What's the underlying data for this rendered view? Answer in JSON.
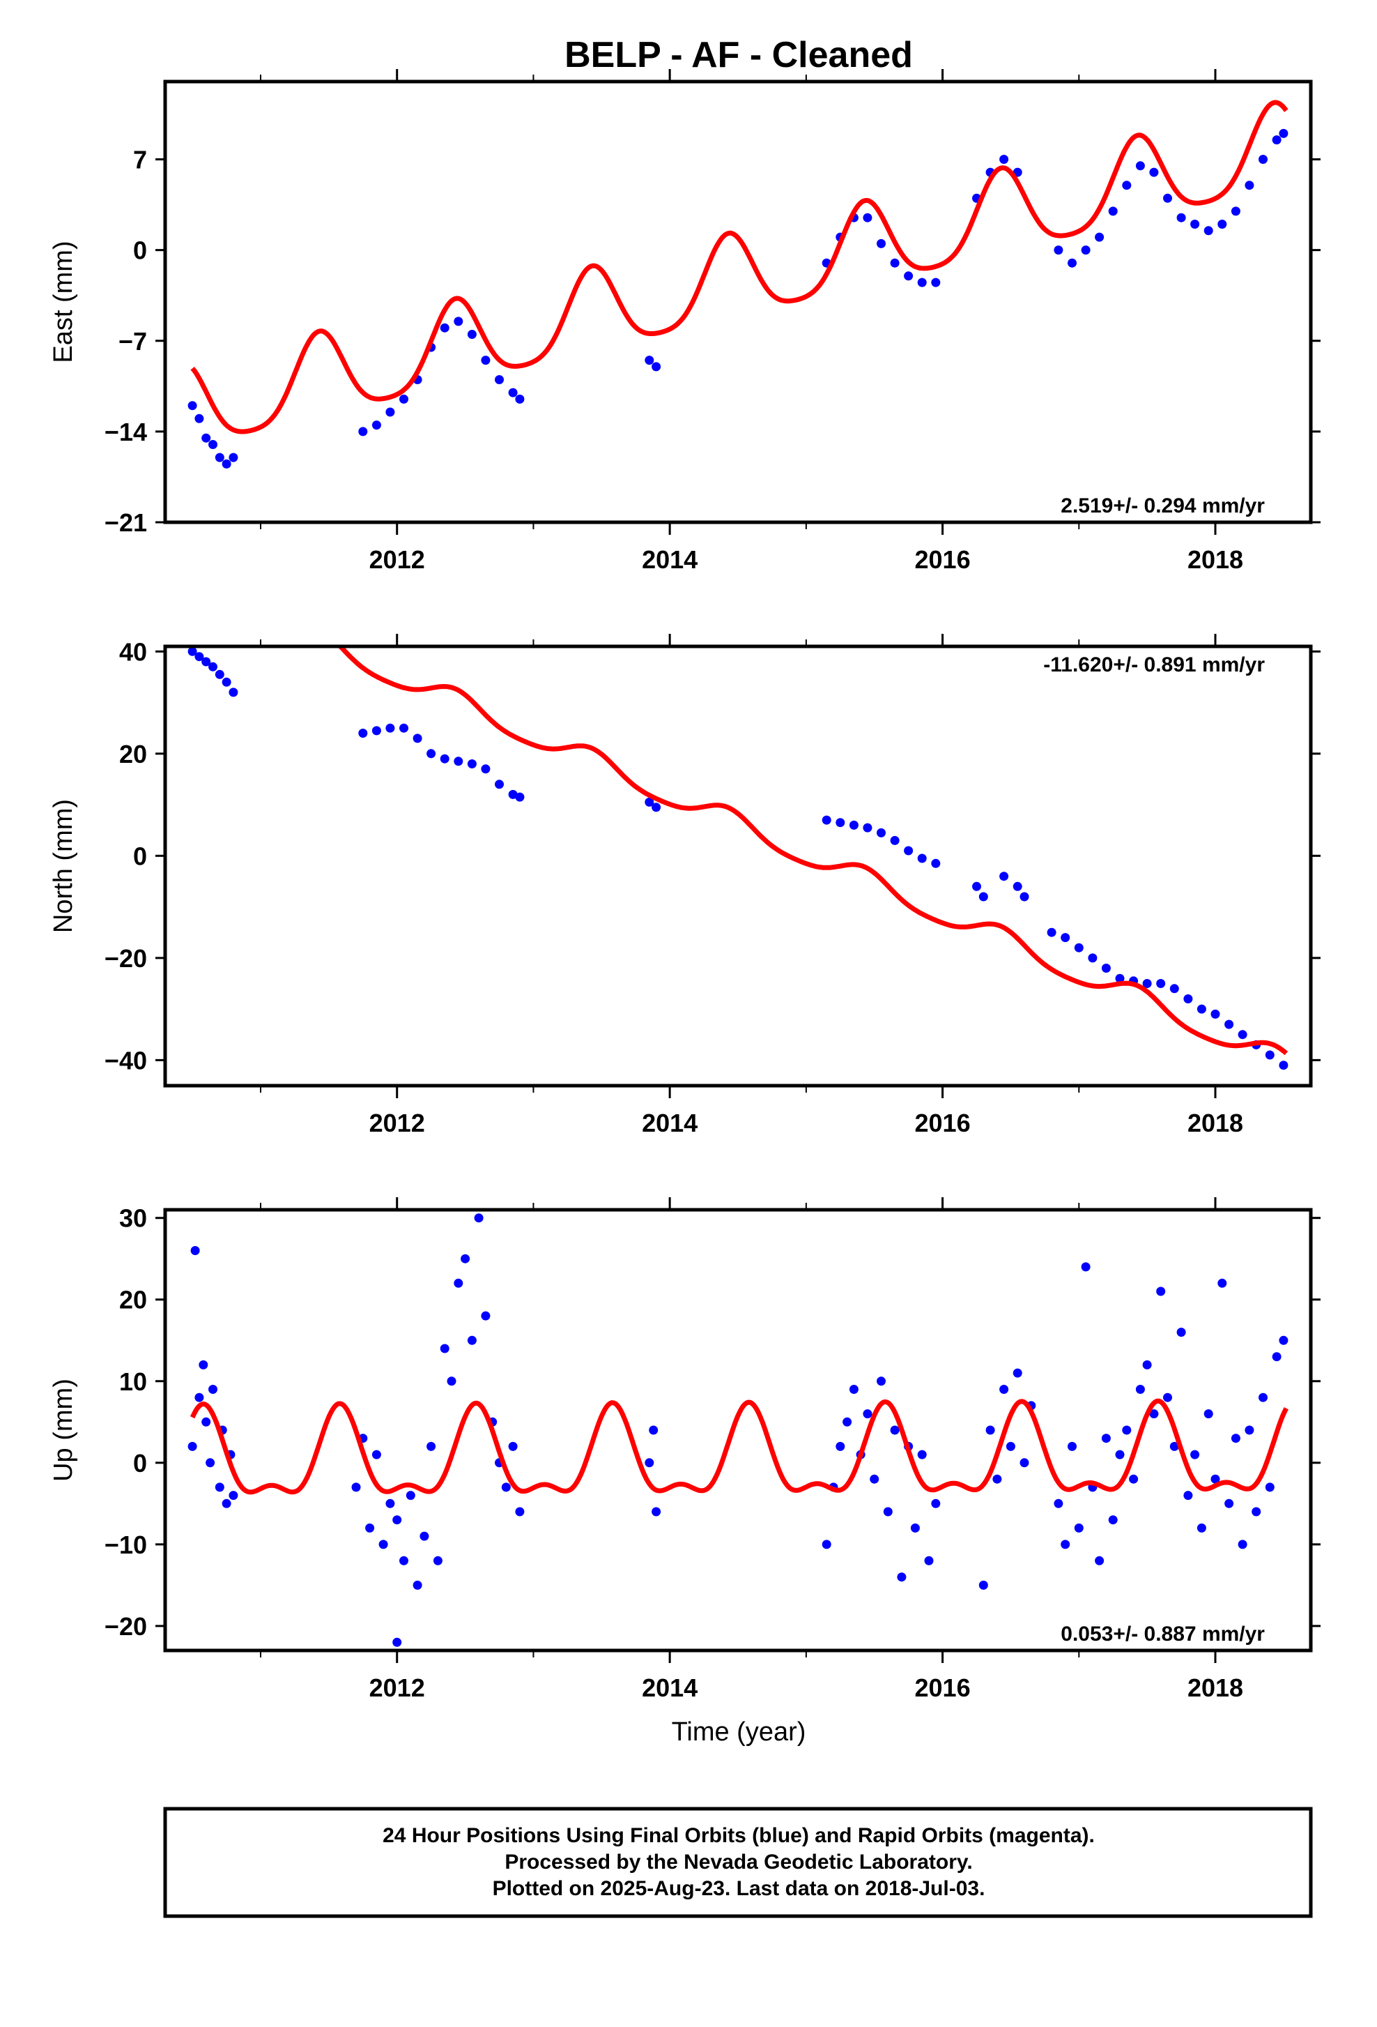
{
  "title": "BELP  - AF - Cleaned",
  "colors": {
    "data": "#0000ff",
    "model": "#ff0000",
    "frame": "#000000"
  },
  "xlabel": "Time (year)",
  "caption": [
    "24 Hour Positions Using Final Orbits (blue) and Rapid Orbits (magenta).",
    "Processed by the Nevada Geodetic Laboratory.",
    "Plotted on 2025-Aug-23. Last data on 2018-Jul-03."
  ],
  "chart_data": [
    {
      "type": "scatter",
      "id": "east",
      "ylabel": "East (mm)",
      "rate_label": "2.519+/- 0.294 mm/yr",
      "xlim": [
        2010.3,
        2018.7
      ],
      "ylim": [
        -21,
        13
      ],
      "yticks": [
        -21,
        -14,
        -7,
        0,
        7
      ],
      "xticks": [
        2012,
        2014,
        2016,
        2018
      ],
      "minor_xticks": [
        2011,
        2013,
        2015,
        2017
      ],
      "series": [
        {
          "x": [
            2010.5,
            2010.55,
            2010.6,
            2010.65,
            2010.7,
            2010.75,
            2010.8,
            2011.75,
            2011.85,
            2011.95,
            2012.05,
            2012.15,
            2012.25,
            2012.35,
            2012.45,
            2012.55,
            2012.65,
            2012.75,
            2012.85,
            2012.9,
            2013.85,
            2013.9,
            2015.15,
            2015.25,
            2015.35,
            2015.45,
            2015.55,
            2015.65,
            2015.75,
            2015.85,
            2015.95,
            2016.25,
            2016.35,
            2016.45,
            2016.55,
            2016.85,
            2016.95,
            2017.05,
            2017.15,
            2017.25,
            2017.35,
            2017.45,
            2017.55,
            2017.65,
            2017.75,
            2017.85,
            2017.95,
            2018.05,
            2018.15,
            2018.25,
            2018.35,
            2018.45,
            2018.5
          ],
          "y": [
            -12,
            -13,
            -14.5,
            -15,
            -16,
            -16.5,
            -16,
            -14,
            -13.5,
            -12.5,
            -11.5,
            -10,
            -7.5,
            -6,
            -5.5,
            -6.5,
            -8.5,
            -10,
            -11,
            -11.5,
            -8.5,
            -9,
            -1,
            1,
            2.5,
            2.5,
            0.5,
            -1,
            -2,
            -2.5,
            -2.5,
            4,
            6,
            7,
            6,
            0,
            -1,
            0,
            1,
            3,
            5,
            6.5,
            6,
            4,
            2.5,
            2,
            1.5,
            2,
            3,
            5,
            7,
            8.5,
            9
          ]
        }
      ],
      "model": {
        "ref_year": 2010.5,
        "offset": -12.4,
        "rate": 2.519,
        "annual_amp": 3.2,
        "annual_phase": 2011.43,
        "semi_amp": 0.6,
        "semi_phase": 2011.43
      }
    },
    {
      "type": "scatter",
      "id": "north",
      "ylabel": "North (mm)",
      "rate_label": "-11.620+/- 0.891 mm/yr",
      "xlim": [
        2010.3,
        2018.7
      ],
      "ylim": [
        -45,
        41
      ],
      "yticks": [
        -40,
        -20,
        0,
        20,
        40
      ],
      "xticks": [
        2012,
        2014,
        2016,
        2018
      ],
      "minor_xticks": [
        2011,
        2013,
        2015,
        2017
      ],
      "series": [
        {
          "x": [
            2010.5,
            2010.55,
            2010.6,
            2010.65,
            2010.7,
            2010.75,
            2010.8,
            2011.75,
            2011.85,
            2011.95,
            2012.05,
            2012.15,
            2012.25,
            2012.35,
            2012.45,
            2012.55,
            2012.65,
            2012.75,
            2012.85,
            2012.9,
            2013.85,
            2013.9,
            2015.15,
            2015.25,
            2015.35,
            2015.45,
            2015.55,
            2015.65,
            2015.75,
            2015.85,
            2015.95,
            2016.25,
            2016.3,
            2016.45,
            2016.55,
            2016.6,
            2016.8,
            2016.9,
            2017.0,
            2017.1,
            2017.2,
            2017.3,
            2017.4,
            2017.5,
            2017.6,
            2017.7,
            2017.8,
            2017.9,
            2018.0,
            2018.1,
            2018.2,
            2018.3,
            2018.4,
            2018.5
          ],
          "y": [
            40,
            39,
            38,
            37,
            35.5,
            34,
            32,
            24,
            24.5,
            25,
            25,
            23,
            20,
            19,
            18.5,
            18,
            17,
            14,
            12,
            11.5,
            10.5,
            9.5,
            7,
            6.5,
            6,
            5.5,
            4.5,
            3,
            1,
            -0.5,
            -1.5,
            -6,
            -8,
            -4,
            -6,
            -8,
            -15,
            -16,
            -18,
            -20,
            -22,
            -24,
            -24.5,
            -25,
            -25,
            -26,
            -28,
            -30,
            -31,
            -33,
            -35,
            -37,
            -39,
            -41
          ]
        }
      ],
      "model": {
        "ref_year": 2010.5,
        "offset": 52.5,
        "rate": -11.62,
        "annual_amp": 2.2,
        "annual_phase": 2011.43,
        "semi_amp": 0.4,
        "semi_phase": 2011.43
      }
    },
    {
      "type": "scatter",
      "id": "up",
      "ylabel": "Up (mm)",
      "rate_label": "0.053+/- 0.887 mm/yr",
      "xlim": [
        2010.3,
        2018.7
      ],
      "ylim": [
        -23,
        31
      ],
      "yticks": [
        -20,
        -10,
        0,
        10,
        20,
        30
      ],
      "xticks": [
        2012,
        2014,
        2016,
        2018
      ],
      "minor_xticks": [
        2011,
        2013,
        2015,
        2017
      ],
      "series": [
        {
          "x": [
            2010.5,
            2010.52,
            2010.55,
            2010.58,
            2010.6,
            2010.63,
            2010.65,
            2010.7,
            2010.72,
            2010.75,
            2010.78,
            2010.8,
            2011.7,
            2011.75,
            2011.8,
            2011.85,
            2011.9,
            2011.95,
            2012.0,
            2012.0,
            2012.05,
            2012.1,
            2012.15,
            2012.2,
            2012.25,
            2012.3,
            2012.35,
            2012.4,
            2012.45,
            2012.5,
            2012.55,
            2012.6,
            2012.65,
            2012.7,
            2012.75,
            2012.8,
            2012.85,
            2012.9,
            2013.85,
            2013.9,
            2013.88,
            2015.15,
            2015.2,
            2015.25,
            2015.3,
            2015.35,
            2015.4,
            2015.45,
            2015.5,
            2015.55,
            2015.6,
            2015.65,
            2015.7,
            2015.75,
            2015.8,
            2015.85,
            2015.9,
            2015.95,
            2016.3,
            2016.35,
            2016.4,
            2016.45,
            2016.5,
            2016.55,
            2016.6,
            2016.65,
            2016.85,
            2016.9,
            2016.95,
            2017.0,
            2017.05,
            2017.1,
            2017.15,
            2017.2,
            2017.25,
            2017.3,
            2017.35,
            2017.4,
            2017.45,
            2017.5,
            2017.55,
            2017.6,
            2017.65,
            2017.7,
            2017.75,
            2017.8,
            2017.85,
            2017.9,
            2017.95,
            2018.0,
            2018.05,
            2018.1,
            2018.15,
            2018.2,
            2018.25,
            2018.3,
            2018.35,
            2018.4,
            2018.45,
            2018.5
          ],
          "y": [
            2,
            26,
            8,
            12,
            5,
            0,
            9,
            -3,
            4,
            -5,
            1,
            -4,
            -3,
            3,
            -8,
            1,
            -10,
            -5,
            -7,
            -22,
            -12,
            -4,
            -15,
            -9,
            2,
            -12,
            14,
            10,
            22,
            25,
            15,
            30,
            18,
            5,
            0,
            -3,
            2,
            -6,
            0,
            -6,
            4,
            -10,
            -3,
            2,
            5,
            9,
            1,
            6,
            -2,
            10,
            -6,
            4,
            -14,
            2,
            -8,
            1,
            -12,
            -5,
            -15,
            4,
            -2,
            9,
            2,
            11,
            0,
            7,
            -5,
            -10,
            2,
            -8,
            24,
            -3,
            -12,
            3,
            -7,
            1,
            4,
            -2,
            9,
            12,
            6,
            21,
            8,
            2,
            16,
            -4,
            1,
            -8,
            6,
            -2,
            22,
            -5,
            3,
            -10,
            4,
            -6,
            8,
            -3,
            13,
            15
          ]
        }
      ],
      "model": {
        "ref_year": 2010.5,
        "offset": 0,
        "rate": 0.053,
        "annual_amp": 5.0,
        "annual_phase": 2011.58,
        "semi_amp": 2.2,
        "semi_phase": 2011.58
      }
    }
  ]
}
